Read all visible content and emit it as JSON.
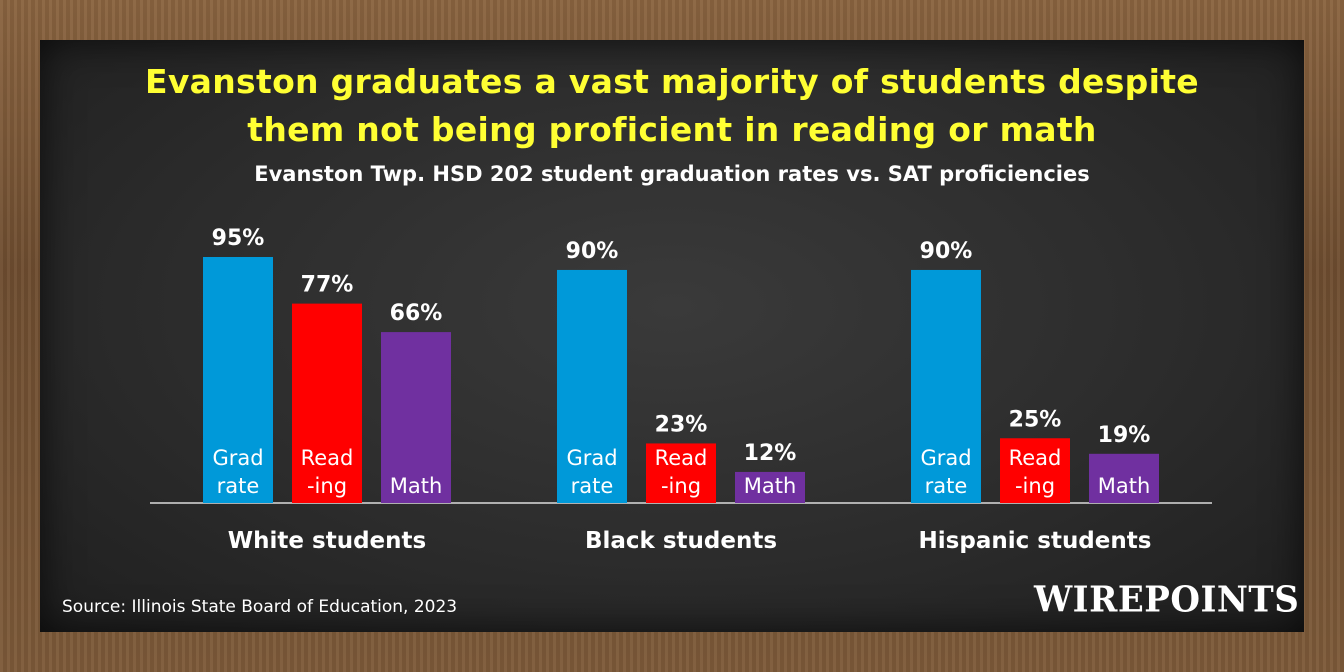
{
  "title_line1": "Evanston graduates a vast majority of students despite",
  "title_line2": "them not being proficient in reading or math",
  "subtitle": "Evanston Twp. HSD 202 student graduation rates vs. SAT proficiencies",
  "source": "Source: Illinois State Board of Education, 2023",
  "logo_text": "WIREPOINTS",
  "chart_data": {
    "type": "bar",
    "title": "Evanston graduates a vast majority of students despite them not being proficient in reading or math",
    "subtitle": "Evanston Twp. HSD 202 student graduation rates vs. SAT proficiencies",
    "categories": [
      "White students",
      "Black students",
      "Hispanic students"
    ],
    "series": [
      {
        "name": "Grad rate",
        "label_lines": [
          "Grad",
          "rate"
        ],
        "color": "#0099d9",
        "values": [
          95,
          90,
          90
        ]
      },
      {
        "name": "Reading",
        "label_lines": [
          "Read",
          "-ing"
        ],
        "color": "#ff0000",
        "values": [
          77,
          23,
          25
        ]
      },
      {
        "name": "Math",
        "label_lines": [
          "Math"
        ],
        "color": "#7030a0",
        "values": [
          66,
          12,
          19
        ]
      }
    ],
    "value_suffix": "%",
    "ylim": [
      0,
      100
    ],
    "grid": false,
    "legend": "none",
    "xlabel": "",
    "ylabel": ""
  },
  "colors": {
    "title": "#ffff33",
    "text": "#ffffff",
    "board": "#2c2c2c",
    "frame": "#7d5a39"
  }
}
